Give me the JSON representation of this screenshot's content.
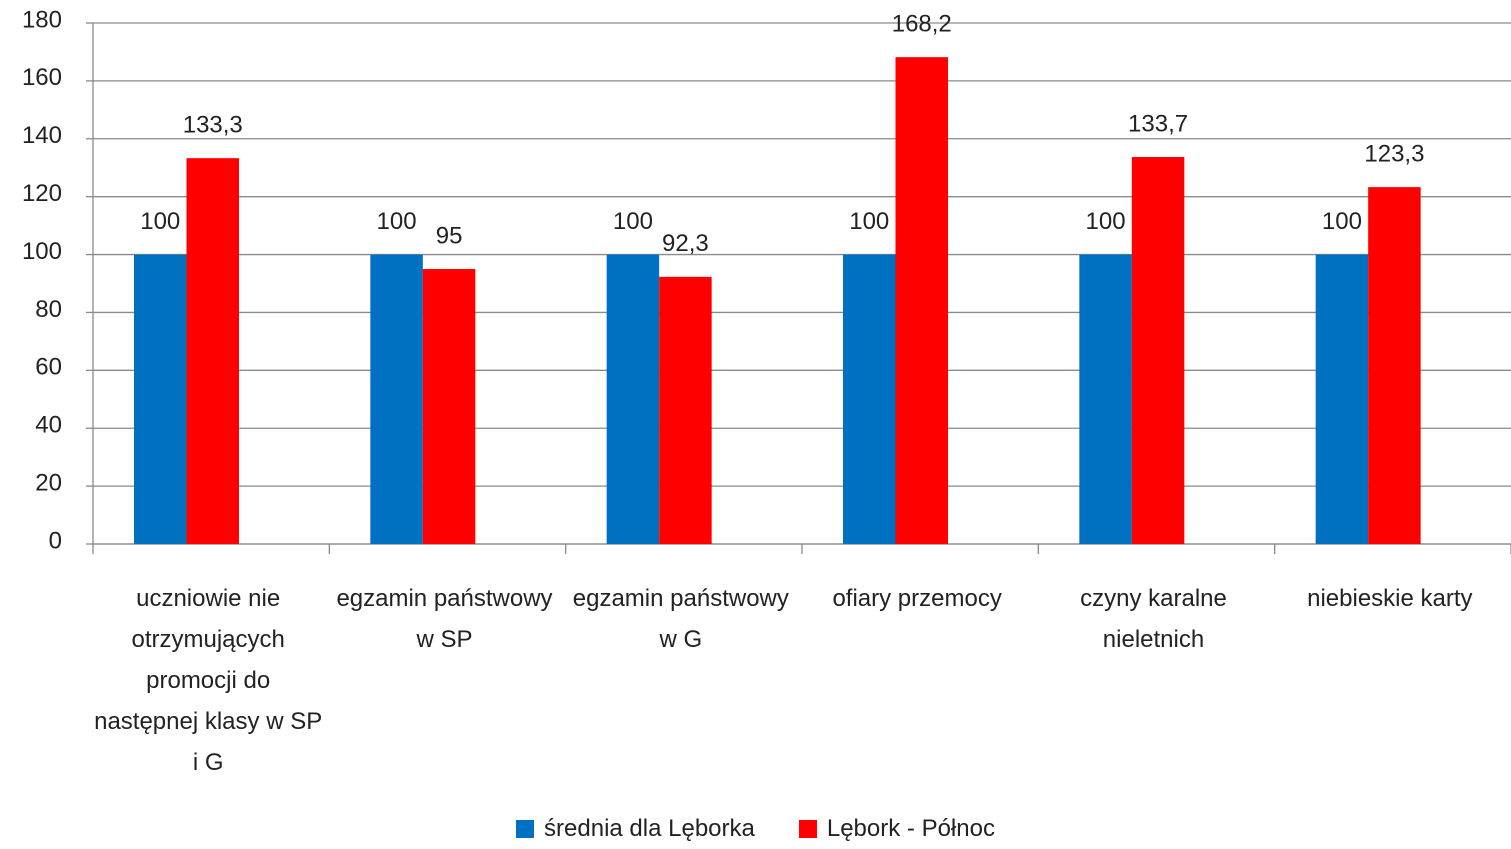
{
  "chart_data": {
    "type": "bar",
    "categories": [
      "uczniowie nie otrzymujących promocji do następnej klasy w SP i G",
      "egzamin państwowy w SP",
      "egzamin państwowy w G",
      "ofiary przemocy",
      "czyny karalne nieletnich",
      "niebieskie karty"
    ],
    "series": [
      {
        "name": "średnia dla Lęborka",
        "color": "#0070c0",
        "values": [
          100,
          100,
          100,
          100,
          100,
          100
        ]
      },
      {
        "name": "Lębork - Północ",
        "color": "#ff0000",
        "values": [
          133.3,
          95,
          92.3,
          168.2,
          133.7,
          123.3
        ],
        "value_labels": [
          "133,3",
          "95",
          "92,3",
          "168,2",
          "133,7",
          "123,3"
        ]
      }
    ],
    "ylim": [
      0,
      180
    ],
    "yticks": [
      0,
      20,
      40,
      60,
      80,
      100,
      120,
      140,
      160,
      180
    ],
    "grid": true,
    "legend": "bottom"
  }
}
